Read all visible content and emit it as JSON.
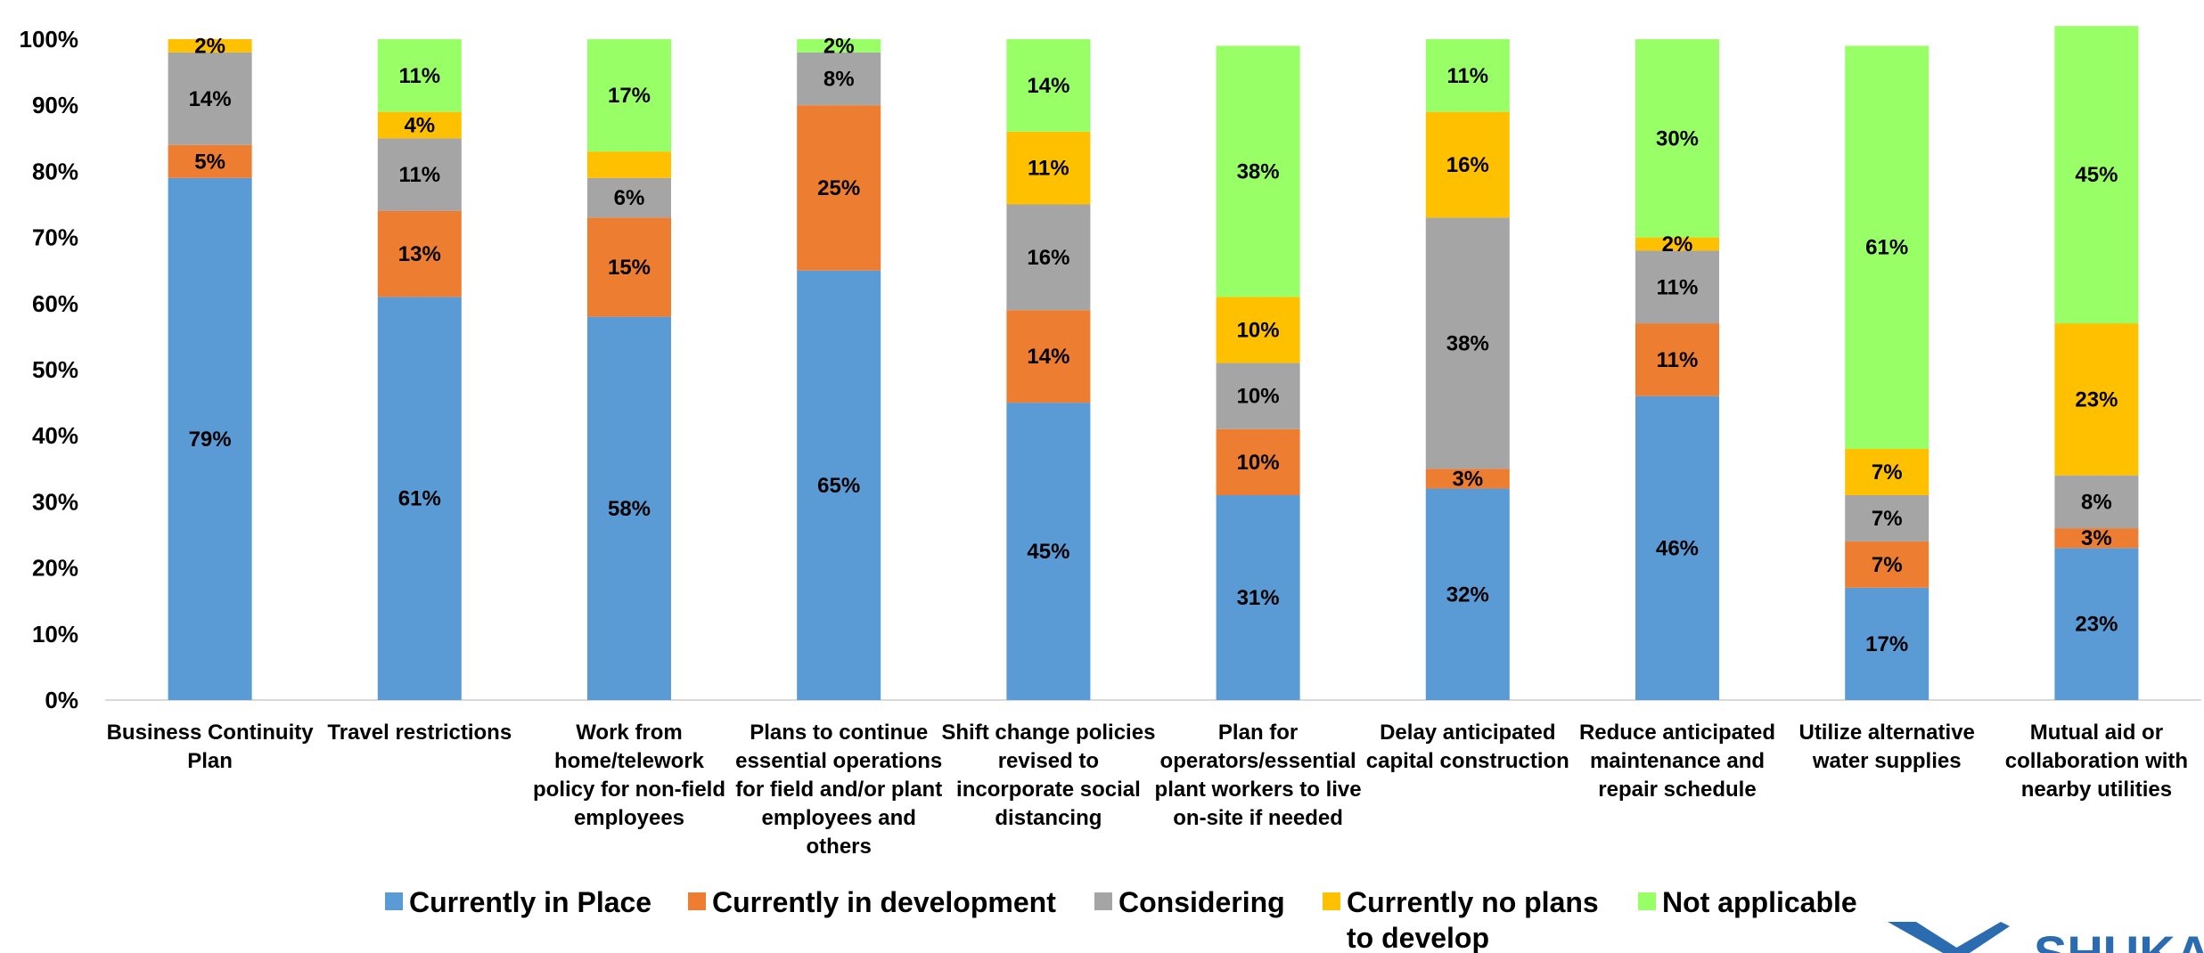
{
  "chart_data": {
    "type": "bar",
    "stacked": true,
    "ylim": [
      0,
      100
    ],
    "y_ticks": [
      "0%",
      "10%",
      "20%",
      "30%",
      "40%",
      "50%",
      "60%",
      "70%",
      "80%",
      "90%",
      "100%"
    ],
    "grid": false,
    "legend_position": "bottom",
    "categories": [
      [
        "Business Continuity",
        "Plan"
      ],
      [
        "Travel restrictions"
      ],
      [
        "Work from",
        "home/telework",
        "policy for non-field",
        "employees"
      ],
      [
        "Plans to continue",
        "essential operations",
        "for field and/or plant",
        "employees and",
        "others"
      ],
      [
        "Shift change policies",
        "revised to",
        "incorporate social",
        "distancing"
      ],
      [
        "Plan for",
        "operators/essential",
        "plant workers to live",
        "on-site if needed"
      ],
      [
        "Delay anticipated",
        "capital construction"
      ],
      [
        "Reduce anticipated",
        "maintenance and",
        "repair schedule"
      ],
      [
        "Utilize alternative",
        "water supplies"
      ],
      [
        "Mutual aid or",
        "collaboration with",
        "nearby utilities"
      ]
    ],
    "series": [
      {
        "name": "Currently in Place",
        "color": "#5b9bd5",
        "values": [
          79,
          61,
          58,
          65,
          45,
          31,
          32,
          46,
          17,
          23
        ]
      },
      {
        "name": "Currently in development",
        "color": "#ed7d31",
        "values": [
          5,
          13,
          15,
          25,
          14,
          10,
          3,
          11,
          7,
          3
        ]
      },
      {
        "name": "Considering",
        "color": "#a5a5a5",
        "values": [
          14,
          11,
          6,
          8,
          16,
          10,
          38,
          11,
          7,
          8
        ]
      },
      {
        "name": "Currently no plans to develop",
        "color": "#ffc000",
        "values": [
          2,
          4,
          4,
          0,
          11,
          10,
          16,
          2,
          7,
          23
        ]
      },
      {
        "name": "Not applicable",
        "color": "#99ff66",
        "values": [
          0,
          11,
          17,
          2,
          14,
          38,
          11,
          30,
          61,
          45
        ]
      }
    ],
    "data_labels": [
      [
        "79%",
        "5%",
        "14%",
        "2%",
        ""
      ],
      [
        "61%",
        "13%",
        "11%",
        "4%",
        "11%"
      ],
      [
        "58%",
        "15%",
        "6%",
        "",
        "17%"
      ],
      [
        "65%",
        "25%",
        "8%",
        "",
        "2%"
      ],
      [
        "45%",
        "14%",
        "16%",
        "11%",
        "14%"
      ],
      [
        "31%",
        "10%",
        "10%",
        "10%",
        "38%"
      ],
      [
        "32%",
        "3%",
        "38%",
        "16%",
        "11%"
      ],
      [
        "46%",
        "11%",
        "11%",
        "2%",
        "30%"
      ],
      [
        "17%",
        "7%",
        "7%",
        "7%",
        "61%"
      ],
      [
        "23%",
        "3%",
        "8%",
        "23%",
        "45%"
      ]
    ],
    "legend_lines": [
      [
        "Currently in Place"
      ],
      [
        "Currently in development"
      ],
      [
        "Considering"
      ],
      [
        "Currently no plans",
        "to develop"
      ],
      [
        "Not applicable"
      ]
    ]
  },
  "brand": {
    "text": "SHUKA",
    "color": "#2b6cb0"
  }
}
